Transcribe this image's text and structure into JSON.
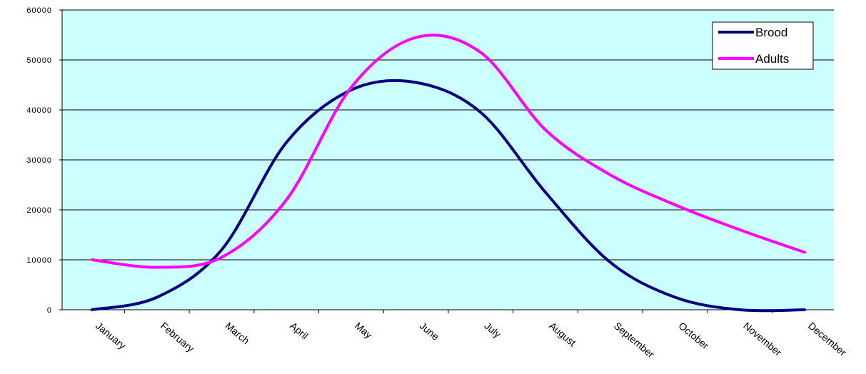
{
  "chart_data": {
    "type": "line",
    "title": "",
    "xlabel": "",
    "ylabel": "",
    "categories": [
      "January",
      "February",
      "March",
      "April",
      "May",
      "June",
      "July",
      "August",
      "September",
      "October",
      "November",
      "December"
    ],
    "ylim": [
      0,
      60000
    ],
    "yticks": [
      0,
      10000,
      20000,
      30000,
      40000,
      50000,
      60000
    ],
    "ytick_labels": [
      "0",
      "10000",
      "20000",
      "30000",
      "40000",
      "50000",
      "60000"
    ],
    "grid": true,
    "legend_position": "top-right",
    "plot_background": "#ccffff",
    "series": [
      {
        "name": "Brood",
        "color": "#000080",
        "values": [
          0,
          2500,
          12000,
          33500,
          44000,
          45500,
          39500,
          23500,
          9500,
          2500,
          0,
          0
        ]
      },
      {
        "name": "Adults",
        "color": "#ff00ff",
        "values": [
          10000,
          8500,
          10500,
          22000,
          44500,
          54500,
          51500,
          36000,
          27000,
          21000,
          16000,
          11500
        ]
      }
    ]
  }
}
